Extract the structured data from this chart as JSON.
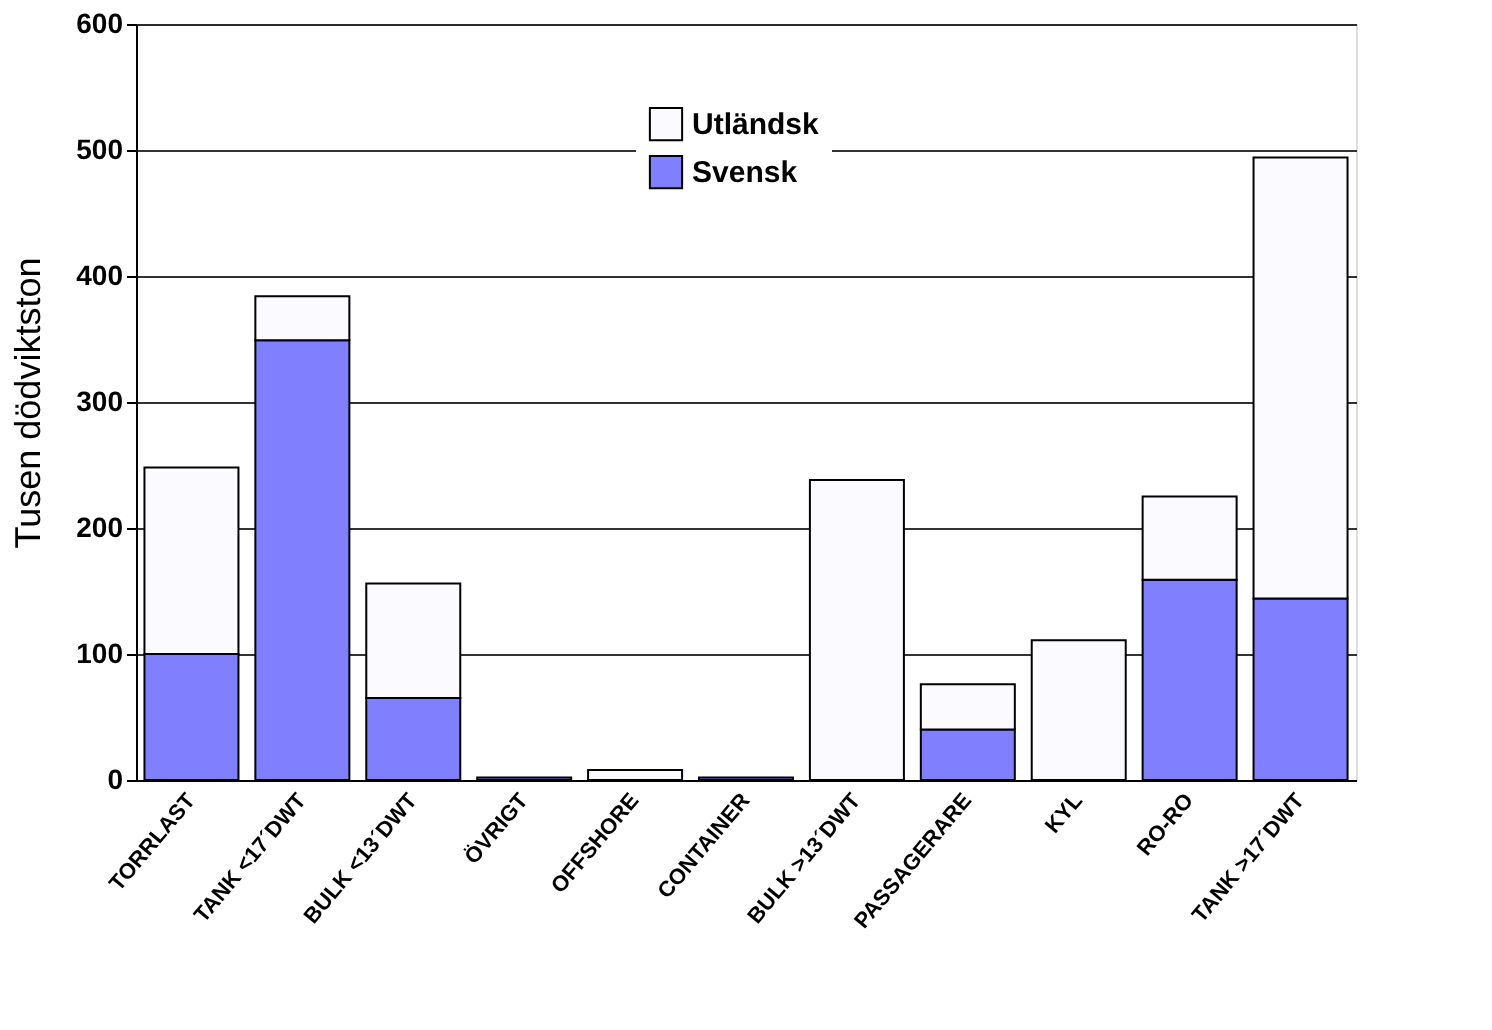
{
  "chart_data": {
    "type": "bar",
    "stacked": true,
    "ylabel": "Tusen dödviktston",
    "categories": [
      "TORRLAST",
      "TANK <17´DWT",
      "BULK <13´DWT",
      "ÖVRIGT",
      "OFFSHORE",
      "CONTAINER",
      "BULK >13´DWT",
      "PASSAGERARE",
      "KYL",
      "RO-RO",
      "TANK >17´DWT"
    ],
    "series": [
      {
        "name": "Svensk",
        "color": "#8080ff",
        "values": [
          100,
          349,
          65,
          2,
          0,
          2,
          0,
          40,
          0,
          159,
          144
        ]
      },
      {
        "name": "Utländsk",
        "color": "#fafaff",
        "values": [
          148,
          35,
          91,
          0,
          8,
          0,
          238,
          36,
          111,
          66,
          350
        ]
      }
    ],
    "ylim": [
      0,
      600
    ],
    "yticks": [
      0,
      100,
      200,
      300,
      400,
      500,
      600
    ],
    "grid": "y",
    "legend": "top"
  }
}
